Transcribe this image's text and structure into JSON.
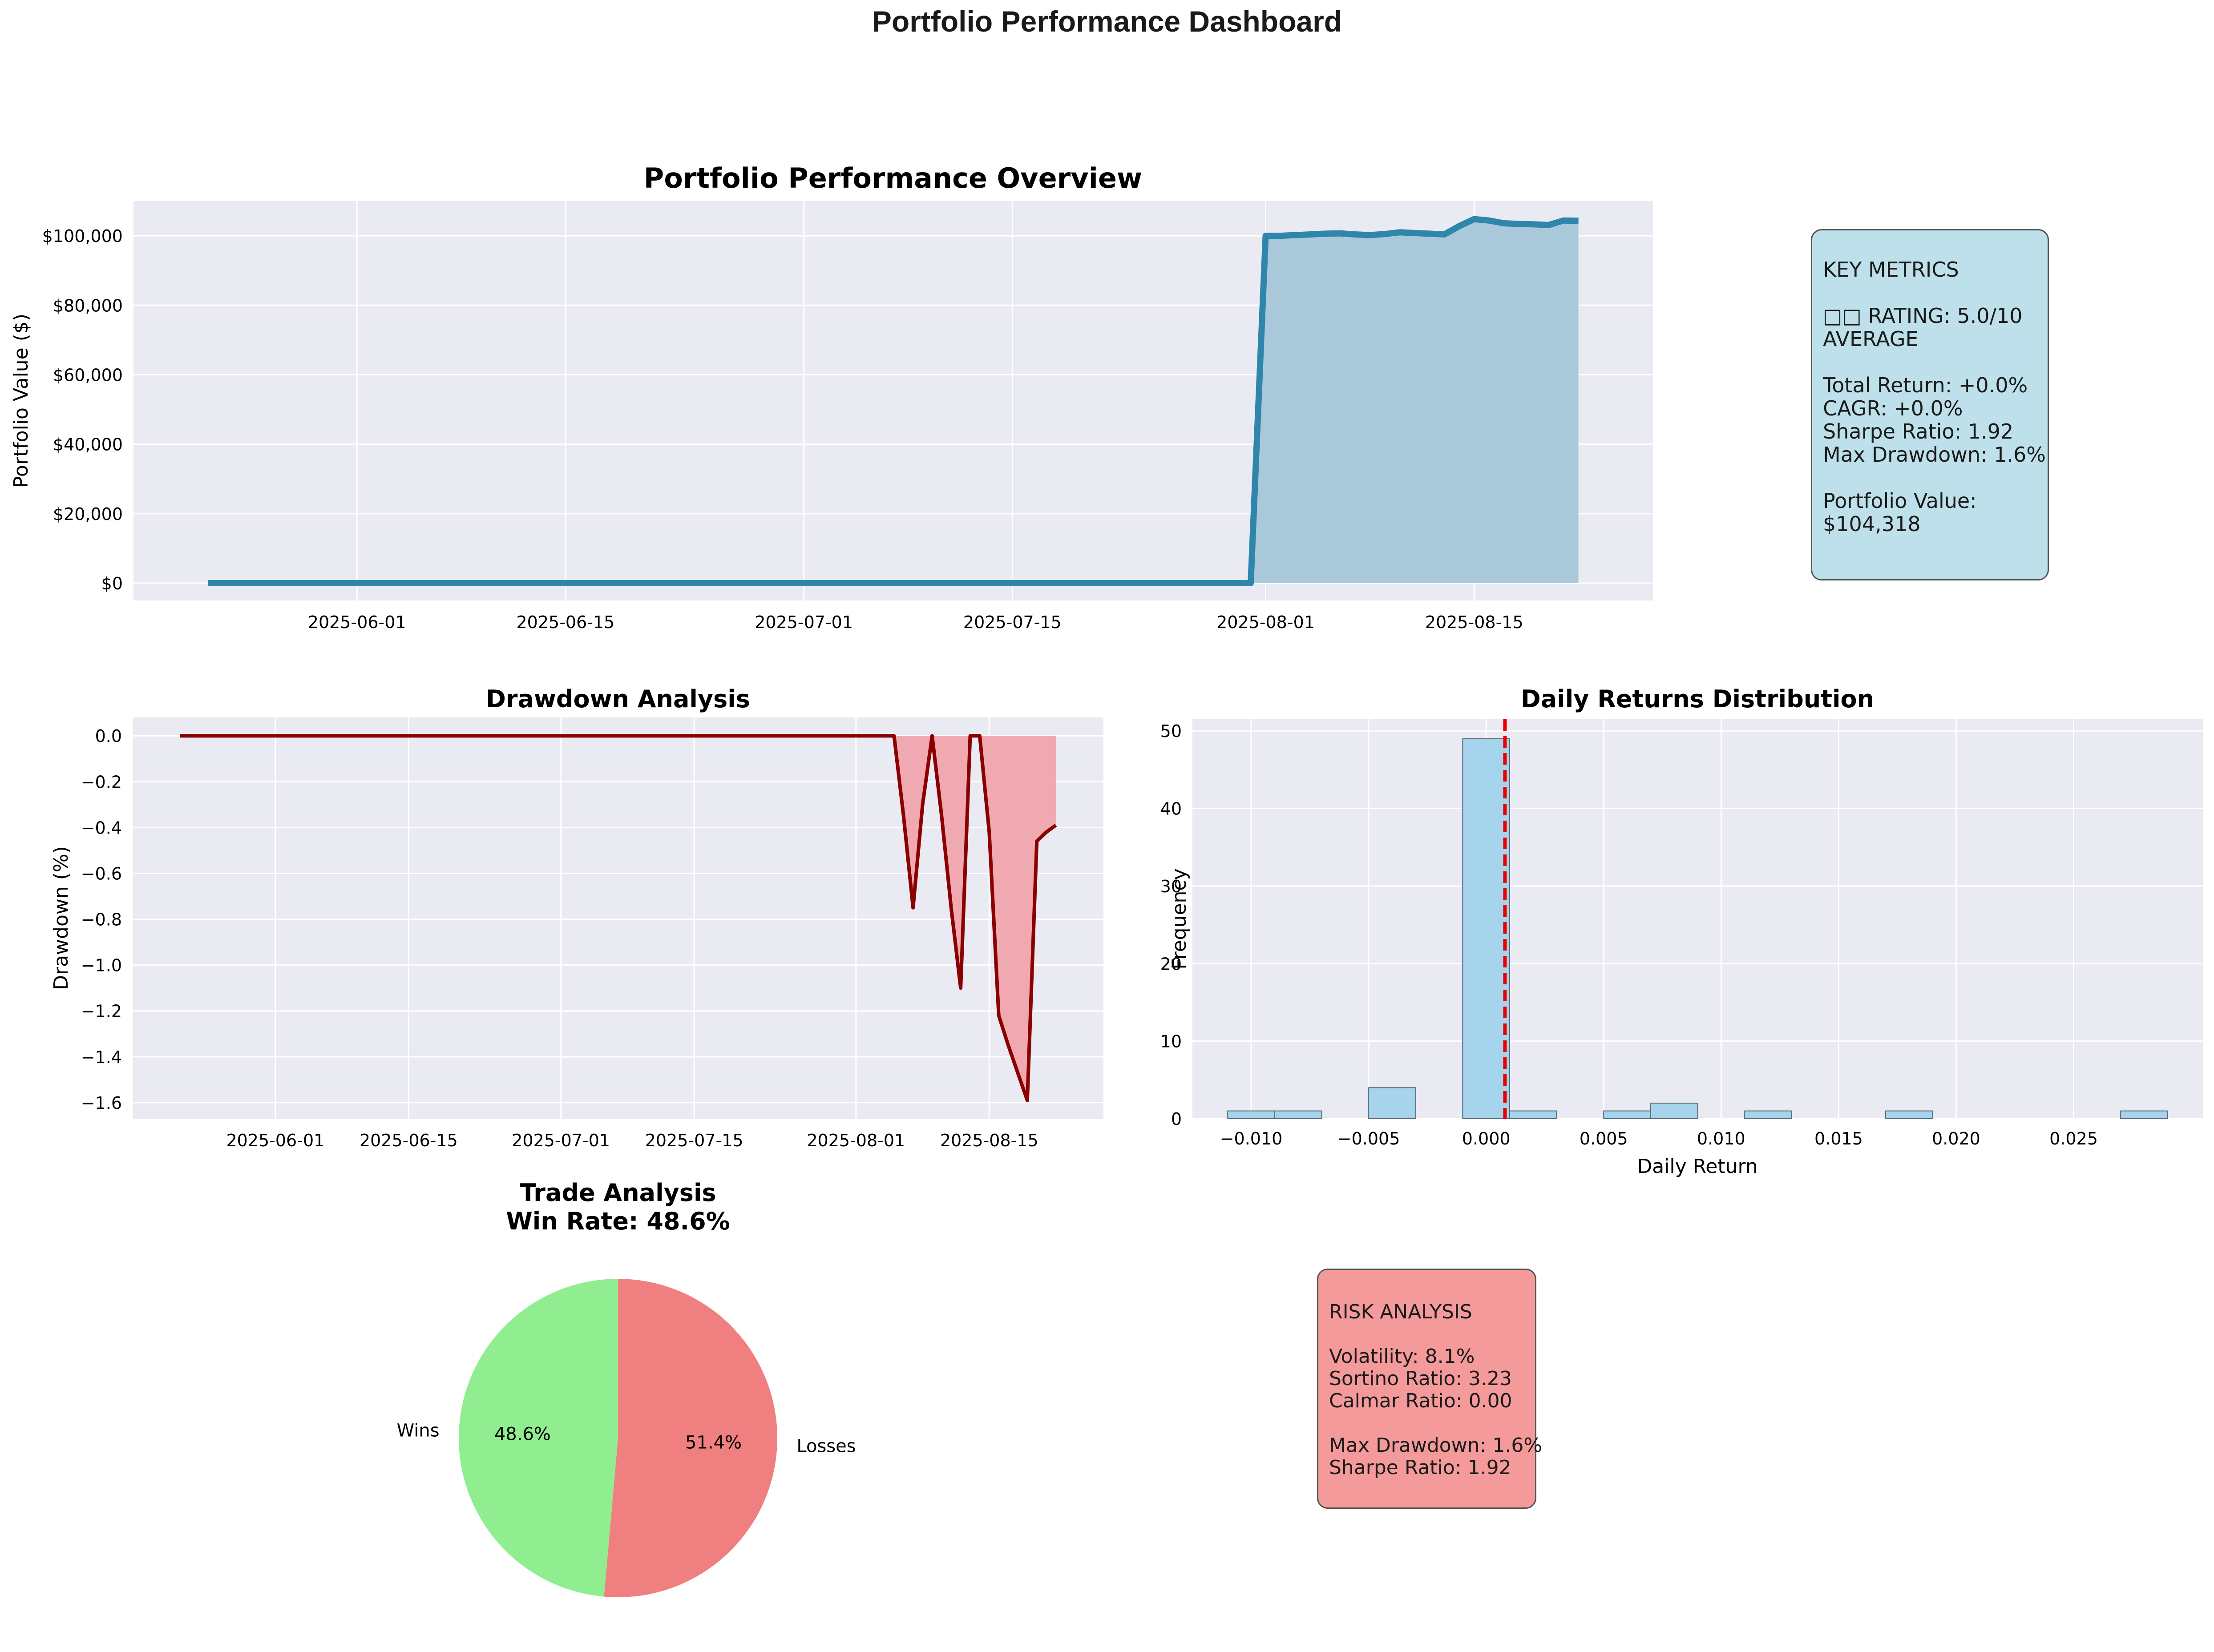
{
  "suptitle": "Portfolio Performance Dashboard",
  "key_metrics": {
    "heading": "KEY METRICS",
    "rating_line": "□□ RATING: 5.0/10",
    "rating_label": "AVERAGE",
    "total_return": "Total Return: +0.0%",
    "cagr": "CAGR: +0.0%",
    "sharpe": "Sharpe Ratio: 1.92",
    "max_drawdown": "Max Drawdown: 1.6%",
    "portfolio_value_label": "Portfolio Value:",
    "portfolio_value": "$104,318"
  },
  "risk_analysis": {
    "heading": "RISK ANALYSIS",
    "volatility": "Volatility: 8.1%",
    "sortino": "Sortino Ratio: 3.23",
    "calmar": "Calmar Ratio: 0.00",
    "max_drawdown": "Max Drawdown: 1.6%",
    "sharpe": "Sharpe Ratio: 1.92"
  },
  "colors": {
    "axes_bg": "#eaeaf2",
    "portfolio_line": "#2e86ab",
    "portfolio_fill": "#a9c8da",
    "drawdown_line": "#8b0000",
    "drawdown_fill": "#f1a5ad",
    "hist_bar": "#a6d4ec",
    "mean_line": "#ee0000",
    "wins": "#90ee90",
    "losses": "#f08080",
    "key_box": "#bde0ea",
    "risk_box": "#f49a9a"
  },
  "chart_data": [
    {
      "type": "area",
      "id": "portfolio",
      "title": "Portfolio Performance Overview",
      "ylabel": "Portfolio Value ($)",
      "xlabel": "",
      "x_dates": [
        "2025-05-22",
        "2025-07-31",
        "2025-08-01",
        "2025-08-02",
        "2025-08-03",
        "2025-08-04",
        "2025-08-05",
        "2025-08-06",
        "2025-08-07",
        "2025-08-08",
        "2025-08-09",
        "2025-08-10",
        "2025-08-11",
        "2025-08-12",
        "2025-08-13",
        "2025-08-14",
        "2025-08-15",
        "2025-08-16",
        "2025-08-17",
        "2025-08-18",
        "2025-08-19",
        "2025-08-20",
        "2025-08-21",
        "2025-08-22"
      ],
      "values": [
        0,
        0,
        100000,
        100000,
        100200,
        100400,
        100600,
        100700,
        100400,
        100200,
        100500,
        101000,
        100800,
        100600,
        100400,
        102800,
        104800,
        104400,
        103600,
        103400,
        103300,
        103100,
        104400,
        104318
      ],
      "ylim": [
        -5000,
        110000
      ],
      "xlim": [
        "2025-05-17",
        "2025-08-27"
      ],
      "yticks": [
        0,
        20000,
        40000,
        60000,
        80000,
        100000
      ],
      "ytick_labels": [
        "$0",
        "$20,000",
        "$40,000",
        "$60,000",
        "$80,000",
        "$100,000"
      ],
      "xticks": [
        "2025-06-01",
        "2025-06-15",
        "2025-07-01",
        "2025-07-15",
        "2025-08-01",
        "2025-08-15"
      ],
      "grid": true
    },
    {
      "type": "area",
      "id": "drawdown",
      "title": "Drawdown Analysis",
      "ylabel": "Drawdown (%)",
      "xlabel": "",
      "x_dates": [
        "2025-05-22",
        "2025-08-05",
        "2025-08-06",
        "2025-08-07",
        "2025-08-08",
        "2025-08-09",
        "2025-08-10",
        "2025-08-11",
        "2025-08-12",
        "2025-08-13",
        "2025-08-14",
        "2025-08-15",
        "2025-08-16",
        "2025-08-17",
        "2025-08-18",
        "2025-08-19",
        "2025-08-20",
        "2025-08-21",
        "2025-08-22"
      ],
      "values": [
        0,
        0,
        -0.35,
        -0.75,
        -0.3,
        0,
        -0.35,
        -0.75,
        -1.1,
        0,
        0,
        -0.42,
        -1.22,
        -1.35,
        -1.47,
        -1.59,
        -0.46,
        -0.42,
        -0.39
      ],
      "ylim": [
        -1.67,
        0.08
      ],
      "xlim": [
        "2025-05-17",
        "2025-08-27"
      ],
      "yticks": [
        0.0,
        -0.2,
        -0.4,
        -0.6,
        -0.8,
        -1.0,
        -1.2,
        -1.4,
        -1.6
      ],
      "ytick_labels": [
        "0.0",
        "−0.2",
        "−0.4",
        "−0.6",
        "−0.8",
        "−1.0",
        "−1.2",
        "−1.4",
        "−1.6"
      ],
      "xticks": [
        "2025-06-01",
        "2025-06-15",
        "2025-07-01",
        "2025-07-15",
        "2025-08-01",
        "2025-08-15"
      ],
      "grid": true
    },
    {
      "type": "bar",
      "id": "returns_hist",
      "title": "Daily Returns Distribution",
      "xlabel": "Daily Return",
      "ylabel": "Frequency",
      "bin_edges": [
        -0.011,
        -0.009,
        -0.007,
        -0.005,
        -0.003,
        -0.001,
        0.001,
        0.003,
        0.005,
        0.007,
        0.009,
        0.011,
        0.013,
        0.015,
        0.017,
        0.019,
        0.021,
        0.023,
        0.025,
        0.027,
        0.029
      ],
      "counts": [
        1,
        1,
        0,
        4,
        0,
        49,
        1,
        0,
        1,
        2,
        0,
        1,
        0,
        0,
        1,
        0,
        0,
        0,
        0,
        1
      ],
      "mean": 0.0008,
      "xlim": [
        -0.0125,
        0.0305
      ],
      "ylim": [
        0,
        51.5
      ],
      "xticks": [
        -0.01,
        -0.005,
        0.0,
        0.005,
        0.01,
        0.015,
        0.02,
        0.025
      ],
      "xtick_labels": [
        "−0.010",
        "−0.005",
        "0.000",
        "0.005",
        "0.010",
        "0.015",
        "0.020",
        "0.025"
      ],
      "yticks": [
        0,
        10,
        20,
        30,
        40,
        50
      ],
      "grid": true
    },
    {
      "type": "pie",
      "id": "trades",
      "title": "Trade Analysis",
      "subtitle": "Win Rate: 48.6%",
      "labels": [
        "Wins",
        "Losses"
      ],
      "values": [
        48.6,
        51.4
      ],
      "pct_labels": [
        "48.6%",
        "51.4%"
      ],
      "startangle": 90
    }
  ]
}
